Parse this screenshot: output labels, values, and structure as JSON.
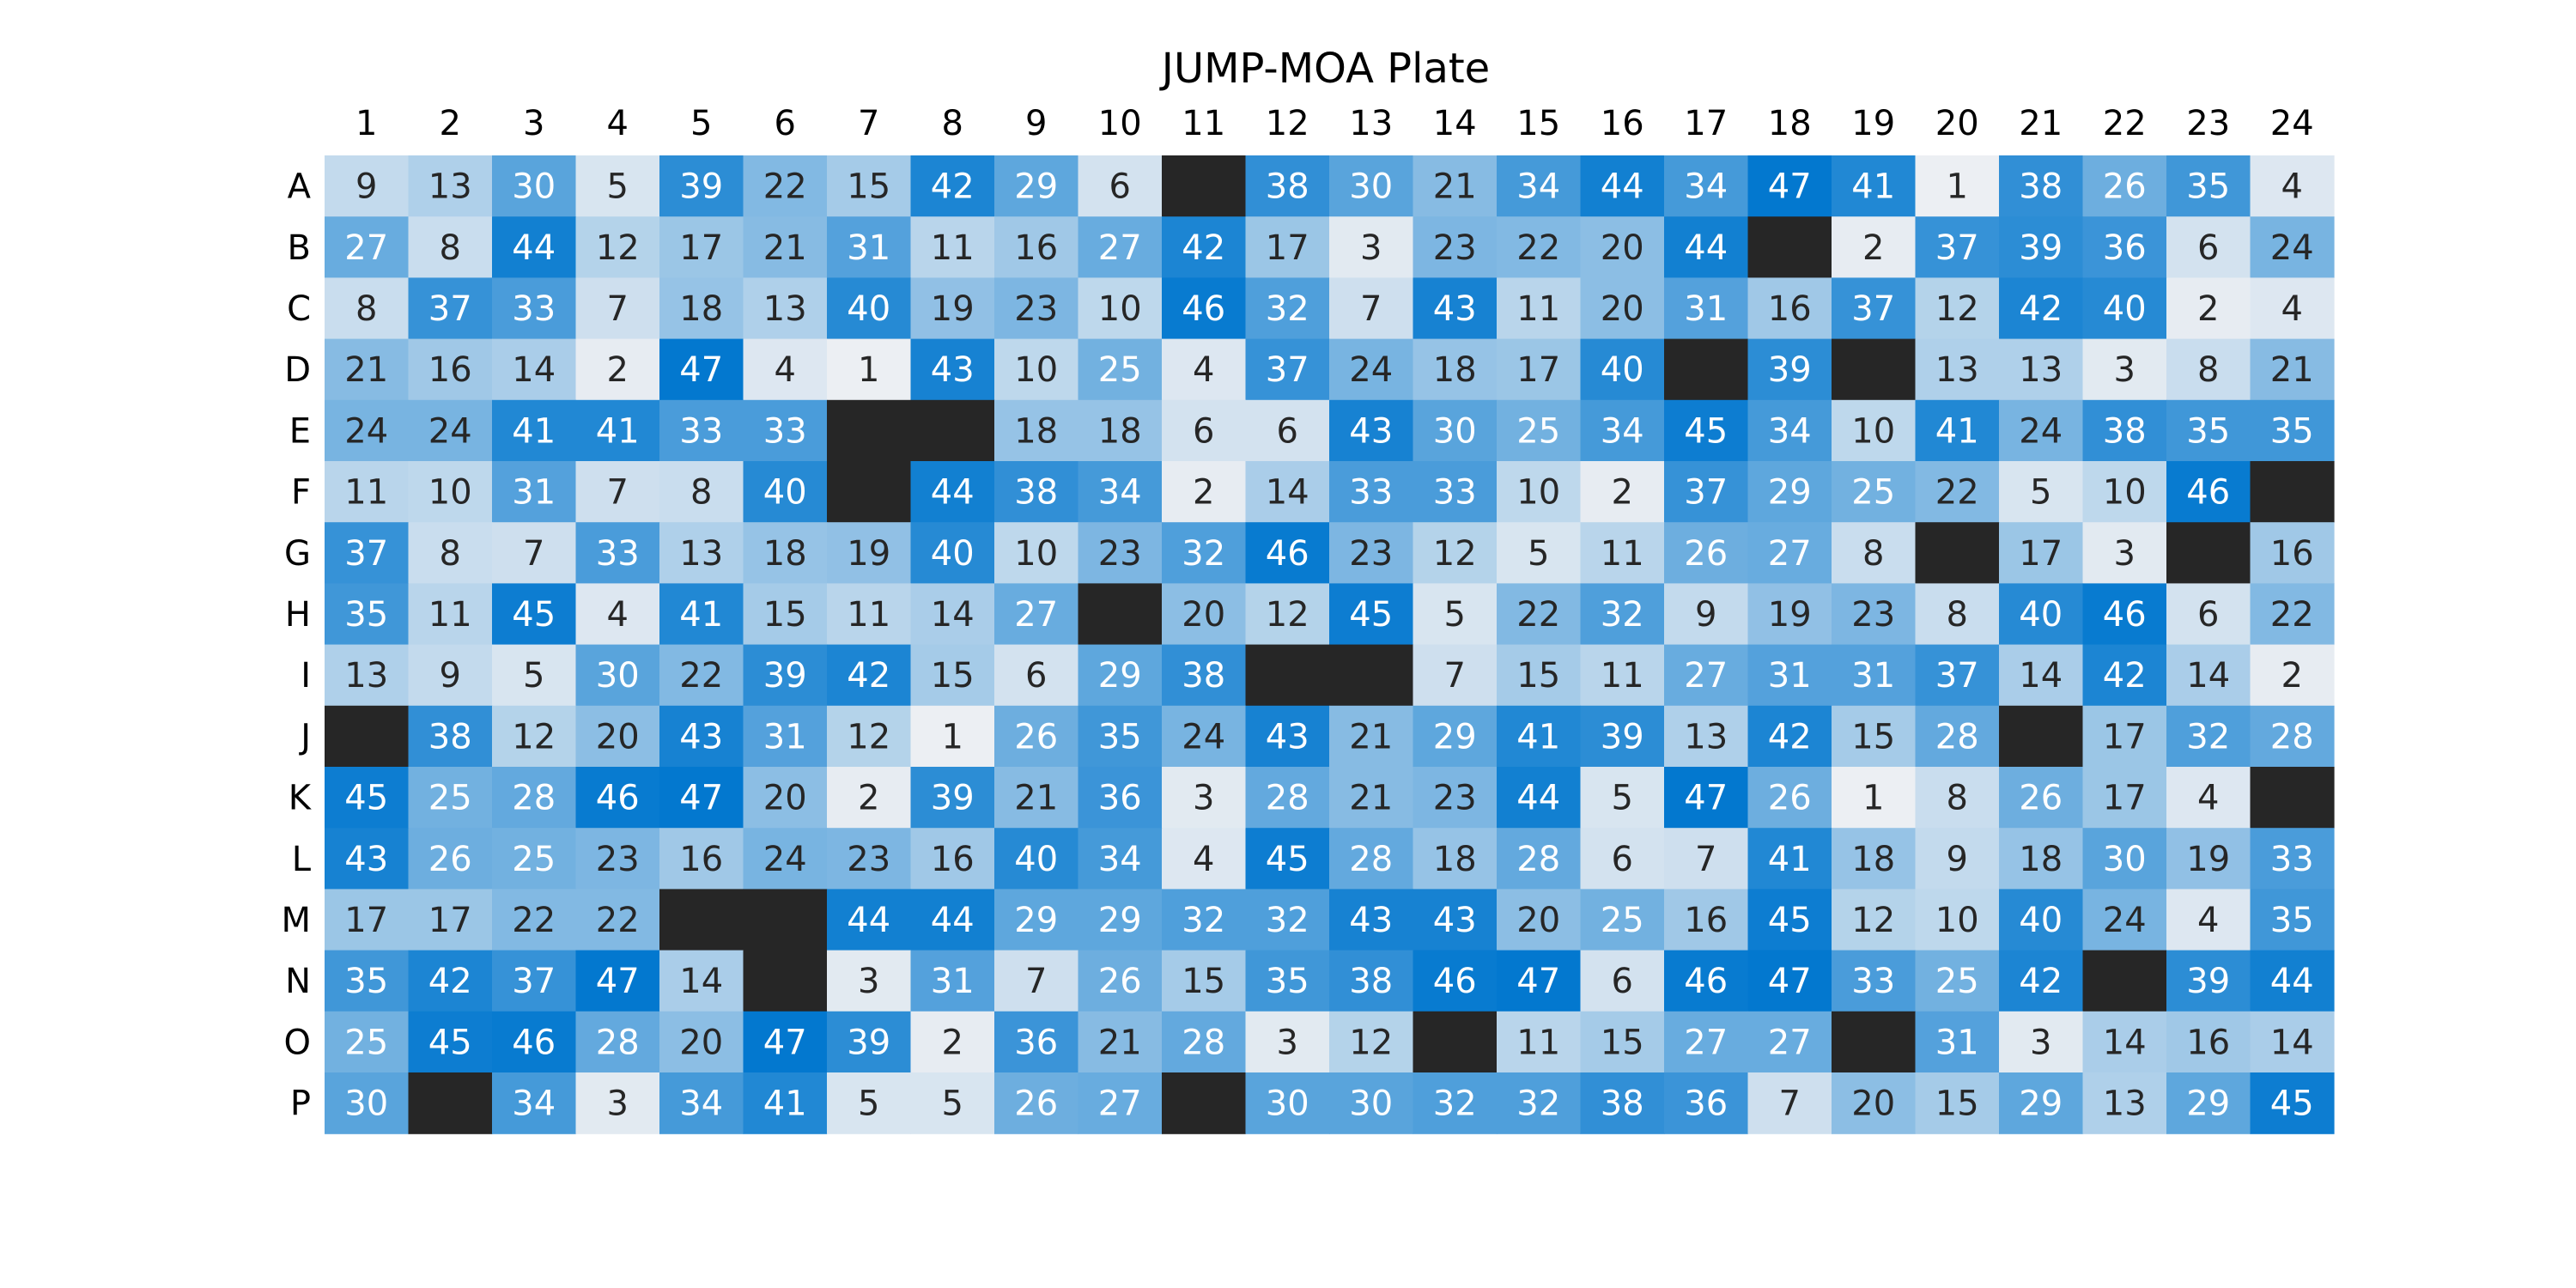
{
  "chart_data": {
    "type": "heatmap",
    "title": "JUMP-MOA Plate",
    "column_labels": [
      "1",
      "2",
      "3",
      "4",
      "5",
      "6",
      "7",
      "8",
      "9",
      "10",
      "11",
      "12",
      "13",
      "14",
      "15",
      "16",
      "17",
      "18",
      "19",
      "20",
      "21",
      "22",
      "23",
      "24"
    ],
    "row_labels": [
      "A",
      "B",
      "C",
      "D",
      "E",
      "F",
      "G",
      "H",
      "I",
      "J",
      "K",
      "L",
      "M",
      "N",
      "O",
      "P"
    ],
    "values": [
      [
        9,
        13,
        30,
        5,
        39,
        22,
        15,
        42,
        29,
        6,
        null,
        38,
        30,
        21,
        34,
        44,
        34,
        47,
        41,
        1,
        38,
        26,
        35,
        4
      ],
      [
        27,
        8,
        44,
        12,
        17,
        21,
        31,
        11,
        16,
        27,
        42,
        17,
        3,
        23,
        22,
        20,
        44,
        null,
        2,
        37,
        39,
        36,
        6,
        24
      ],
      [
        8,
        37,
        33,
        7,
        18,
        13,
        40,
        19,
        23,
        10,
        46,
        32,
        7,
        43,
        11,
        20,
        31,
        16,
        37,
        12,
        42,
        40,
        2,
        4
      ],
      [
        21,
        16,
        14,
        2,
        47,
        4,
        1,
        43,
        10,
        25,
        4,
        37,
        24,
        18,
        17,
        40,
        null,
        39,
        null,
        13,
        13,
        3,
        8,
        21
      ],
      [
        24,
        24,
        41,
        41,
        33,
        33,
        null,
        null,
        18,
        18,
        6,
        6,
        43,
        30,
        25,
        34,
        45,
        34,
        10,
        41,
        24,
        38,
        35,
        35
      ],
      [
        11,
        10,
        31,
        7,
        8,
        40,
        null,
        44,
        38,
        34,
        2,
        14,
        33,
        33,
        10,
        2,
        37,
        29,
        25,
        22,
        5,
        10,
        46,
        null
      ],
      [
        37,
        8,
        7,
        33,
        13,
        18,
        19,
        40,
        10,
        23,
        32,
        46,
        23,
        12,
        5,
        11,
        26,
        27,
        8,
        null,
        17,
        3,
        null,
        16
      ],
      [
        35,
        11,
        45,
        4,
        41,
        15,
        11,
        14,
        27,
        null,
        20,
        12,
        45,
        5,
        22,
        32,
        9,
        19,
        23,
        8,
        40,
        46,
        6,
        22
      ],
      [
        13,
        9,
        5,
        30,
        22,
        39,
        42,
        15,
        6,
        29,
        38,
        null,
        null,
        7,
        15,
        11,
        27,
        31,
        31,
        37,
        14,
        42,
        14,
        2
      ],
      [
        null,
        38,
        12,
        20,
        43,
        31,
        12,
        1,
        26,
        35,
        24,
        43,
        21,
        29,
        41,
        39,
        13,
        42,
        15,
        28,
        null,
        17,
        32,
        28
      ],
      [
        45,
        25,
        28,
        46,
        47,
        20,
        2,
        39,
        21,
        36,
        3,
        28,
        21,
        23,
        44,
        5,
        47,
        26,
        1,
        8,
        26,
        17,
        4,
        null
      ],
      [
        43,
        26,
        25,
        23,
        16,
        24,
        23,
        16,
        40,
        34,
        4,
        45,
        28,
        18,
        28,
        6,
        7,
        41,
        18,
        9,
        18,
        30,
        19,
        33
      ],
      [
        17,
        17,
        22,
        22,
        null,
        null,
        44,
        44,
        29,
        29,
        32,
        32,
        43,
        43,
        20,
        25,
        16,
        45,
        12,
        10,
        40,
        24,
        4,
        35
      ],
      [
        35,
        42,
        37,
        47,
        14,
        null,
        3,
        31,
        7,
        26,
        15,
        35,
        38,
        46,
        47,
        6,
        46,
        47,
        33,
        25,
        42,
        null,
        39,
        44
      ],
      [
        25,
        45,
        46,
        28,
        20,
        47,
        39,
        2,
        36,
        21,
        28,
        3,
        12,
        null,
        11,
        15,
        27,
        27,
        null,
        31,
        3,
        14,
        16,
        14
      ],
      [
        30,
        null,
        34,
        3,
        34,
        41,
        5,
        5,
        26,
        27,
        null,
        30,
        30,
        32,
        32,
        38,
        36,
        7,
        20,
        15,
        29,
        13,
        29,
        45
      ]
    ],
    "value_range": [
      1,
      47
    ],
    "colormap": {
      "low": "#eceff3",
      "high": "#0378cf",
      "empty": "#262626"
    },
    "text_colors": {
      "dark": "#262626",
      "light": "#ffffff"
    },
    "grid": false,
    "legend": "none"
  }
}
